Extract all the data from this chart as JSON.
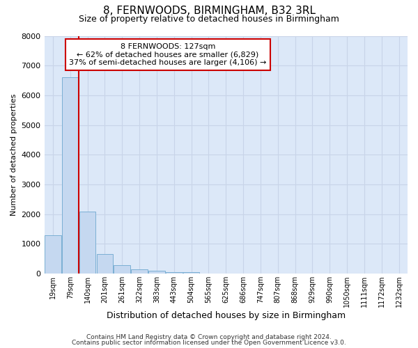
{
  "title": "8, FERNWOODS, BIRMINGHAM, B32 3RL",
  "subtitle": "Size of property relative to detached houses in Birmingham",
  "xlabel": "Distribution of detached houses by size in Birmingham",
  "ylabel": "Number of detached properties",
  "footer_line1": "Contains HM Land Registry data © Crown copyright and database right 2024.",
  "footer_line2": "Contains public sector information licensed under the Open Government Licence v3.0.",
  "bar_categories": [
    "19sqm",
    "79sqm",
    "140sqm",
    "201sqm",
    "261sqm",
    "322sqm",
    "383sqm",
    "443sqm",
    "504sqm",
    "565sqm",
    "625sqm",
    "686sqm",
    "747sqm",
    "807sqm",
    "868sqm",
    "929sqm",
    "990sqm",
    "1050sqm",
    "1111sqm",
    "1172sqm",
    "1232sqm"
  ],
  "bar_values": [
    1300,
    6600,
    2080,
    670,
    290,
    135,
    90,
    50,
    50,
    0,
    0,
    0,
    0,
    0,
    0,
    0,
    0,
    0,
    0,
    0,
    0
  ],
  "bar_color": "#c5d8f0",
  "bar_edge_color": "#7bafd4",
  "red_line_x": 1.5,
  "annotation_text": "8 FERNWOODS: 127sqm\n← 62% of detached houses are smaller (6,829)\n37% of semi-detached houses are larger (4,106) →",
  "annotation_box_color": "white",
  "annotation_box_edge_color": "#cc0000",
  "red_line_color": "#cc0000",
  "grid_color": "#c8d4e8",
  "plot_bg_color": "#dce8f8",
  "fig_bg_color": "#ffffff",
  "ylim": [
    0,
    8000
  ],
  "yticks": [
    0,
    1000,
    2000,
    3000,
    4000,
    5000,
    6000,
    7000,
    8000
  ],
  "title_fontsize": 11,
  "subtitle_fontsize": 9,
  "xlabel_fontsize": 9,
  "ylabel_fontsize": 8,
  "tick_fontsize": 7,
  "annotation_fontsize": 8,
  "footer_fontsize": 6.5
}
